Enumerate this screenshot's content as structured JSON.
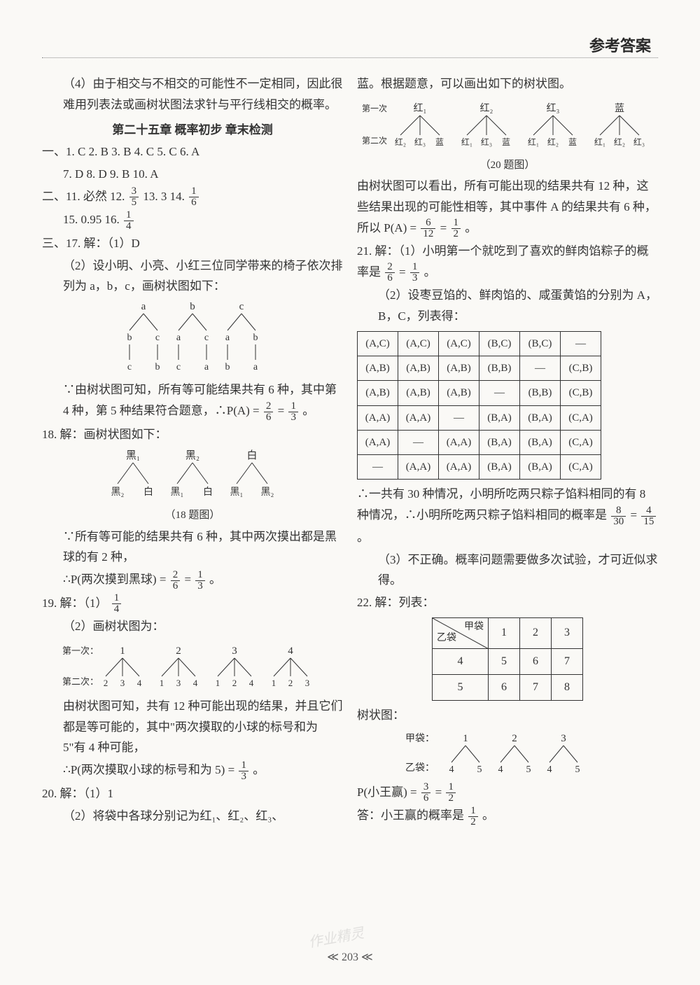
{
  "header": "参考答案",
  "pageNumber": "≪ 203 ≪",
  "watermark": "作业精灵",
  "left": {
    "p4": "（4）由于相交与不相交的可能性不一定相同，因此很难用列表法或画树状图法求针与平行线相交的概率。",
    "chapterTitle": "第二十五章  概率初步  章末检测",
    "sec1": "一、1. C   2. B   3. B   4. C   5. C   6. A",
    "sec1b": "7. D   8. D   9. B   10. A",
    "sec2a": "二、11. 必然   12. ",
    "f12n": "3",
    "f12d": "5",
    "sec2b": "   13. 3   14. ",
    "f14n": "1",
    "f14d": "6",
    "sec2c": "15. 0.95   16. ",
    "f16n": "1",
    "f16d": "4",
    "sec3a": "三、17. 解：（1）D",
    "sec3b": "（2）设小明、小亮、小红三位同学带来的椅子依次排列为 a，b，c，画树状图如下：",
    "tree17": {
      "tops": [
        "a",
        "b",
        "c"
      ],
      "mids": [
        [
          "b",
          "c"
        ],
        [
          "a",
          "c"
        ],
        [
          "a",
          "b"
        ]
      ],
      "bots": [
        [
          "c",
          "b"
        ],
        [
          "c",
          "a"
        ],
        [
          "b",
          "a"
        ]
      ]
    },
    "sec3c": "∵由树状图可知，所有等可能结果共有 6 种，其中第 4 种，第 5 种结果符合题意，∴P(A) = ",
    "f17an": "2",
    "f17ad": "6",
    "sec3d": " = ",
    "f17bn": "1",
    "f17bd": "3",
    "sec3e": "。",
    "q18a": "18. 解：画树状图如下：",
    "tree18": {
      "tops": [
        "黑₁",
        "黑₂",
        "白"
      ],
      "bots": [
        [
          "黑₂",
          "白"
        ],
        [
          "黑₁",
          "白"
        ],
        [
          "黑₁",
          "黑₂"
        ]
      ]
    },
    "caption18": "（18 题图）",
    "q18b": "∵所有等可能的结果共有 6 种，其中两次摸出都是黑球的有 2 种，",
    "q18c": "∴P(两次摸到黑球) = ",
    "f18an": "2",
    "f18ad": "6",
    "q18d": " = ",
    "f18bn": "1",
    "f18bd": "3",
    "q18e": "。",
    "q19a": "19. 解：（1）",
    "f19n": "1",
    "f19d": "4",
    "q19b": "（2）画树状图为：",
    "tree19": {
      "label1": "第一次：",
      "label2": "第二次：",
      "tops": [
        "1",
        "2",
        "3",
        "4"
      ],
      "bots": [
        [
          "2",
          "3",
          "4"
        ],
        [
          "1",
          "3",
          "4"
        ],
        [
          "1",
          "2",
          "4"
        ],
        [
          "1",
          "2",
          "3"
        ]
      ]
    },
    "q19c": "由树状图可知，共有 12 种可能出现的结果，并且它们都是等可能的，其中\"两次摸取的小球的标号和为 5\"有 4 种可能，",
    "q19d": "∴P(两次摸取小球的标号和为 5) = ",
    "f19bn": "1",
    "f19bd": "3",
    "q19e": "。",
    "q20a": "20. 解：（1）1",
    "q20b": "（2）将袋中各球分别记为红₁、红₂、红₃、"
  },
  "right": {
    "r1": "蓝。根据题意，可以画出如下的树状图。",
    "tree20": {
      "label1": "第一次",
      "label2": "第二次",
      "tops": [
        "红₁",
        "红₂",
        "红₃",
        "蓝"
      ],
      "bots": [
        [
          "红₂",
          "红₃",
          "蓝"
        ],
        [
          "红₁",
          "红₃",
          "蓝"
        ],
        [
          "红₁",
          "红₂",
          "蓝"
        ],
        [
          "红₁",
          "红₂",
          "红₃"
        ]
      ]
    },
    "caption20": "（20 题图）",
    "r2": "由树状图可以看出，所有可能出现的结果共有 12 种，这些结果出现的可能性相等，其中事件 A 的结果共有 6 种，所以 P(A) = ",
    "f20an": "6",
    "f20ad": "12",
    "r2b": " = ",
    "f20bn": "1",
    "f20bd": "2",
    "r2c": "。",
    "q21a": "21. 解：（1）小明第一个就吃到了喜欢的鲜肉馅粽子的概率是 ",
    "f21an": "2",
    "f21ad": "6",
    "q21b": " = ",
    "f21bn": "1",
    "f21bd": "3",
    "q21c": "。",
    "q21d": "（2）设枣豆馅的、鲜肉馅的、咸蛋黄馅的分别为 A，B，C，列表得：",
    "table21": [
      [
        "(A,C)",
        "(A,C)",
        "(A,C)",
        "(B,C)",
        "(B,C)",
        "—"
      ],
      [
        "(A,B)",
        "(A,B)",
        "(A,B)",
        "(B,B)",
        "—",
        "(C,B)"
      ],
      [
        "(A,B)",
        "(A,B)",
        "(A,B)",
        "—",
        "(B,B)",
        "(C,B)"
      ],
      [
        "(A,A)",
        "(A,A)",
        "—",
        "(B,A)",
        "(B,A)",
        "(C,A)"
      ],
      [
        "(A,A)",
        "—",
        "(A,A)",
        "(B,A)",
        "(B,A)",
        "(C,A)"
      ],
      [
        "—",
        "(A,A)",
        "(A,A)",
        "(B,A)",
        "(B,A)",
        "(C,A)"
      ]
    ],
    "q21e": "∴一共有 30 种情况，小明所吃两只粽子馅料相同的有 8 种情况，∴小明所吃两只粽子馅料相同的概率是 ",
    "f21cn": "8",
    "f21cd": "30",
    "q21f": " = ",
    "f21dn": "4",
    "f21dd": "15",
    "q21g": "。",
    "q21h": "（3）不正确。概率问题需要做多次试验，才可近似求得。",
    "q22a": "22. 解：列表：",
    "table22": {
      "diagTop": "甲袋",
      "diagBot": "乙袋",
      "cols": [
        "1",
        "2",
        "3"
      ],
      "rows": [
        {
          "h": "4",
          "c": [
            "5",
            "6",
            "7"
          ]
        },
        {
          "h": "5",
          "c": [
            "6",
            "7",
            "8"
          ]
        }
      ]
    },
    "q22b": "树状图：",
    "tree22": {
      "label1": "甲袋：",
      "label2": "乙袋：",
      "tops": [
        "1",
        "2",
        "3"
      ],
      "bots": [
        [
          "4",
          "5"
        ],
        [
          "4",
          "5"
        ],
        [
          "4",
          "5"
        ]
      ]
    },
    "q22c": "P(小王赢) = ",
    "f22an": "3",
    "f22ad": "6",
    "q22d": " = ",
    "f22bn": "1",
    "f22bd": "2",
    "q22e": "答：小王赢的概率是 ",
    "f22cn": "1",
    "f22cd": "2",
    "q22f": "。"
  }
}
